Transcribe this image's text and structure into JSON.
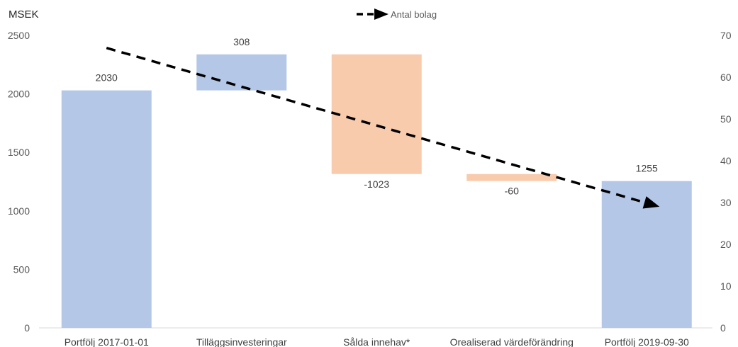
{
  "chart_data": {
    "type": "bar",
    "subtype": "waterfall-with-line",
    "unit_label": "MSEK",
    "categories": [
      "Portfölj 2017-01-01",
      "Tilläggsinvesteringar",
      "Sålda innehav*",
      "Orealiserad värdeförändring",
      "Portfölj 2019-09-30"
    ],
    "values": [
      2030,
      308,
      -1023,
      -60,
      1255
    ],
    "value_labels": [
      "2030",
      "308",
      "-1023",
      "-60",
      "1255"
    ],
    "bar_kinds": [
      "total",
      "increase",
      "decrease",
      "decrease",
      "total"
    ],
    "y_left": {
      "ylim": [
        0,
        2500
      ],
      "ticks": [
        0,
        500,
        1000,
        1500,
        2000,
        2500
      ]
    },
    "y_right": {
      "ylim": [
        0,
        70
      ],
      "ticks": [
        0,
        10,
        20,
        30,
        40,
        50,
        60,
        70
      ]
    },
    "line_series": {
      "name": "Antal bolag",
      "axis": "right",
      "start": {
        "category_index": 0,
        "value": 67
      },
      "end": {
        "category_index": 4,
        "value": 29
      }
    },
    "legend": {
      "position": "top-center",
      "entries": [
        "Antal bolag"
      ]
    },
    "grid": false,
    "colors": {
      "blue_bars": "#b4c7e7",
      "orange_bars": "#f8cbad",
      "line": "#000000",
      "text": "#404040",
      "axis": "#d9d9d9"
    }
  }
}
